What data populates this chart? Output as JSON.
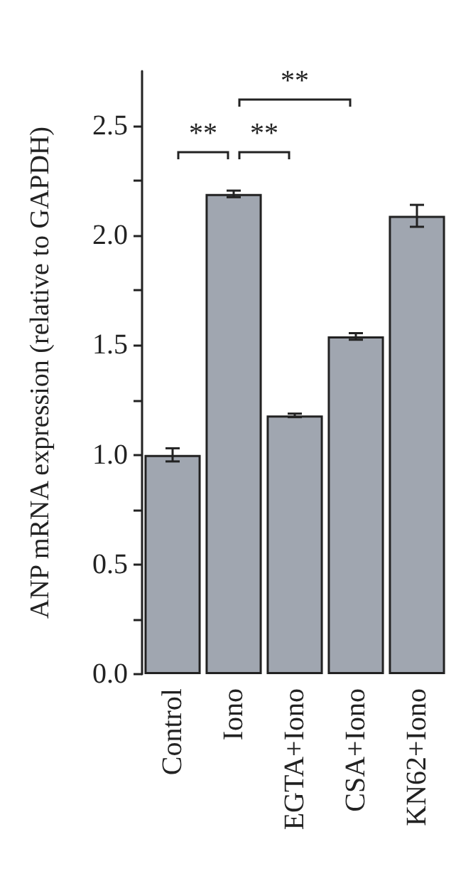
{
  "chart_data": {
    "type": "bar",
    "ylabel": "ANP mRNA expression (relative to GAPDH)",
    "categories": [
      "Control",
      "Iono",
      "EGTA+Iono",
      "CSA+Iono",
      "KN62+Iono"
    ],
    "values": [
      1.0,
      2.19,
      1.18,
      1.54,
      2.09
    ],
    "errors": [
      0.03,
      0.015,
      0.008,
      0.015,
      0.05
    ],
    "color": "#a0a6b0",
    "ylim": [
      0,
      2.75
    ],
    "yticks": [
      {
        "value": 0,
        "label": "0.0"
      },
      {
        "value": 0.25,
        "label": null
      },
      {
        "value": 0.5,
        "label": "0.5"
      },
      {
        "value": 0.75,
        "label": null
      },
      {
        "value": 1,
        "label": "1.0"
      },
      {
        "value": 1.25,
        "label": null
      },
      {
        "value": 1.5,
        "label": "1.5"
      },
      {
        "value": 1.75,
        "label": null
      },
      {
        "value": 2,
        "label": "2.0"
      },
      {
        "value": 2.25,
        "label": null
      },
      {
        "value": 2.5,
        "label": "2.5"
      }
    ],
    "grid": false,
    "annotations": [
      "**",
      "**",
      "**"
    ]
  }
}
